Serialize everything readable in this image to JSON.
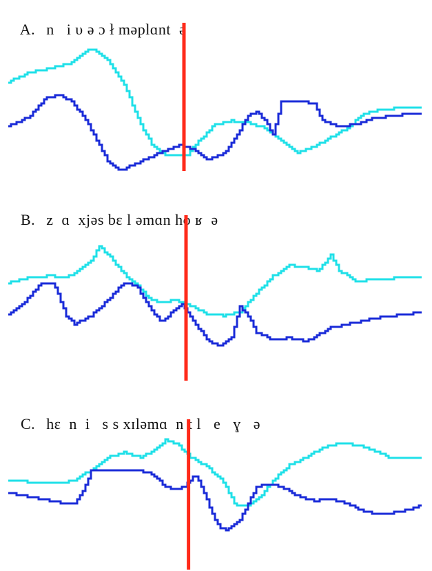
{
  "colors": {
    "trace_light": "#1fe0e8",
    "trace_dark": "#1a2bd8",
    "marker": "#ff2a1a",
    "background": "#ffffff"
  },
  "panels": [
    {
      "letter": "A.",
      "transcription": "n   i υ ə ɔ ł məplɑnt  ə",
      "marker_fraction": 0.425,
      "traces": {
        "light": [
          [
            0,
            0.62
          ],
          [
            0.05,
            0.52
          ],
          [
            0.1,
            0.47
          ],
          [
            0.15,
            0.42
          ],
          [
            0.18,
            0.32
          ],
          [
            0.2,
            0.26
          ],
          [
            0.24,
            0.38
          ],
          [
            0.28,
            0.65
          ],
          [
            0.32,
            1.08
          ],
          [
            0.35,
            1.32
          ],
          [
            0.38,
            1.42
          ],
          [
            0.43,
            1.42
          ],
          [
            0.46,
            1.26
          ],
          [
            0.5,
            1.08
          ],
          [
            0.54,
            1.04
          ],
          [
            0.58,
            1.06
          ],
          [
            0.62,
            1.12
          ],
          [
            0.66,
            1.26
          ],
          [
            0.7,
            1.38
          ],
          [
            0.74,
            1.32
          ],
          [
            0.78,
            1.22
          ],
          [
            0.82,
            1.12
          ],
          [
            0.86,
            0.96
          ],
          [
            0.9,
            0.92
          ],
          [
            0.95,
            0.9
          ],
          [
            1.0,
            0.9
          ]
        ],
        "dark": [
          [
            0,
            1.1
          ],
          [
            0.05,
            1.0
          ],
          [
            0.09,
            0.8
          ],
          [
            0.12,
            0.76
          ],
          [
            0.15,
            0.82
          ],
          [
            0.18,
            0.98
          ],
          [
            0.21,
            1.22
          ],
          [
            0.24,
            1.48
          ],
          [
            0.27,
            1.58
          ],
          [
            0.3,
            1.52
          ],
          [
            0.34,
            1.44
          ],
          [
            0.38,
            1.36
          ],
          [
            0.42,
            1.3
          ],
          [
            0.45,
            1.36
          ],
          [
            0.48,
            1.46
          ],
          [
            0.52,
            1.4
          ],
          [
            0.55,
            1.22
          ],
          [
            0.58,
            0.98
          ],
          [
            0.6,
            0.94
          ],
          [
            0.62,
            1.04
          ],
          [
            0.64,
            1.18
          ],
          [
            0.66,
            0.84
          ],
          [
            0.7,
            0.82
          ],
          [
            0.74,
            0.86
          ],
          [
            0.76,
            1.04
          ],
          [
            0.8,
            1.1
          ],
          [
            0.84,
            1.08
          ],
          [
            0.88,
            1.02
          ],
          [
            0.94,
            0.98
          ],
          [
            1.0,
            0.96
          ]
        ]
      }
    },
    {
      "letter": "B.",
      "transcription": "z  ɑ  xjəs bɛ l əmɑn ho ʁ  ə",
      "marker_fraction": 0.43,
      "traces": {
        "light": [
          [
            0,
            0.72
          ],
          [
            0.05,
            0.66
          ],
          [
            0.1,
            0.64
          ],
          [
            0.14,
            0.66
          ],
          [
            0.17,
            0.58
          ],
          [
            0.2,
            0.46
          ],
          [
            0.22,
            0.3
          ],
          [
            0.25,
            0.44
          ],
          [
            0.28,
            0.62
          ],
          [
            0.31,
            0.74
          ],
          [
            0.34,
            0.9
          ],
          [
            0.37,
            0.96
          ],
          [
            0.4,
            0.92
          ],
          [
            0.44,
            0.98
          ],
          [
            0.48,
            1.08
          ],
          [
            0.52,
            1.1
          ],
          [
            0.56,
            1.06
          ],
          [
            0.6,
            0.84
          ],
          [
            0.64,
            0.64
          ],
          [
            0.68,
            0.52
          ],
          [
            0.72,
            0.54
          ],
          [
            0.75,
            0.58
          ],
          [
            0.78,
            0.4
          ],
          [
            0.8,
            0.58
          ],
          [
            0.84,
            0.7
          ],
          [
            0.9,
            0.68
          ],
          [
            0.95,
            0.66
          ],
          [
            1.0,
            0.66
          ]
        ],
        "dark": [
          [
            0,
            1.08
          ],
          [
            0.04,
            0.94
          ],
          [
            0.08,
            0.72
          ],
          [
            0.11,
            0.74
          ],
          [
            0.14,
            1.1
          ],
          [
            0.16,
            1.2
          ],
          [
            0.2,
            1.1
          ],
          [
            0.24,
            0.92
          ],
          [
            0.28,
            0.72
          ],
          [
            0.31,
            0.76
          ],
          [
            0.34,
            1.0
          ],
          [
            0.37,
            1.18
          ],
          [
            0.4,
            1.04
          ],
          [
            0.42,
            0.96
          ],
          [
            0.45,
            1.18
          ],
          [
            0.48,
            1.38
          ],
          [
            0.51,
            1.46
          ],
          [
            0.54,
            1.36
          ],
          [
            0.56,
            1.0
          ],
          [
            0.58,
            1.1
          ],
          [
            0.6,
            1.3
          ],
          [
            0.64,
            1.38
          ],
          [
            0.68,
            1.36
          ],
          [
            0.72,
            1.4
          ],
          [
            0.75,
            1.32
          ],
          [
            0.78,
            1.24
          ],
          [
            0.84,
            1.18
          ],
          [
            0.9,
            1.12
          ],
          [
            1.0,
            1.06
          ]
        ]
      }
    },
    {
      "letter": "C.",
      "transcription": "hɛ  n  i   s s xɪləmɑ  n t l   e   ɣ   ə",
      "marker_fraction": 0.436,
      "traces": {
        "light": [
          [
            0,
            0.7
          ],
          [
            0.06,
            0.72
          ],
          [
            0.12,
            0.74
          ],
          [
            0.16,
            0.7
          ],
          [
            0.2,
            0.56
          ],
          [
            0.24,
            0.4
          ],
          [
            0.28,
            0.34
          ],
          [
            0.32,
            0.4
          ],
          [
            0.35,
            0.32
          ],
          [
            0.38,
            0.18
          ],
          [
            0.41,
            0.24
          ],
          [
            0.44,
            0.4
          ],
          [
            0.48,
            0.52
          ],
          [
            0.52,
            0.72
          ],
          [
            0.55,
            1.02
          ],
          [
            0.58,
            1.02
          ],
          [
            0.61,
            0.9
          ],
          [
            0.64,
            0.7
          ],
          [
            0.68,
            0.5
          ],
          [
            0.72,
            0.4
          ],
          [
            0.76,
            0.28
          ],
          [
            0.8,
            0.22
          ],
          [
            0.84,
            0.24
          ],
          [
            0.88,
            0.3
          ],
          [
            0.92,
            0.4
          ],
          [
            0.96,
            0.42
          ],
          [
            1.0,
            0.42
          ]
        ],
        "dark": [
          [
            0,
            0.86
          ],
          [
            0.06,
            0.92
          ],
          [
            0.12,
            0.98
          ],
          [
            0.16,
            1.0
          ],
          [
            0.18,
            0.84
          ],
          [
            0.2,
            0.58
          ],
          [
            0.24,
            0.56
          ],
          [
            0.28,
            0.58
          ],
          [
            0.32,
            0.58
          ],
          [
            0.35,
            0.62
          ],
          [
            0.38,
            0.78
          ],
          [
            0.41,
            0.82
          ],
          [
            0.43,
            0.76
          ],
          [
            0.45,
            0.62
          ],
          [
            0.47,
            0.8
          ],
          [
            0.49,
            1.1
          ],
          [
            0.51,
            1.3
          ],
          [
            0.53,
            1.34
          ],
          [
            0.56,
            1.2
          ],
          [
            0.58,
            1.0
          ],
          [
            0.6,
            0.78
          ],
          [
            0.63,
            0.74
          ],
          [
            0.66,
            0.78
          ],
          [
            0.7,
            0.9
          ],
          [
            0.74,
            0.96
          ],
          [
            0.78,
            0.94
          ],
          [
            0.82,
            1.0
          ],
          [
            0.86,
            1.1
          ],
          [
            0.9,
            1.14
          ],
          [
            0.95,
            1.1
          ],
          [
            1.0,
            1.02
          ]
        ]
      }
    }
  ]
}
